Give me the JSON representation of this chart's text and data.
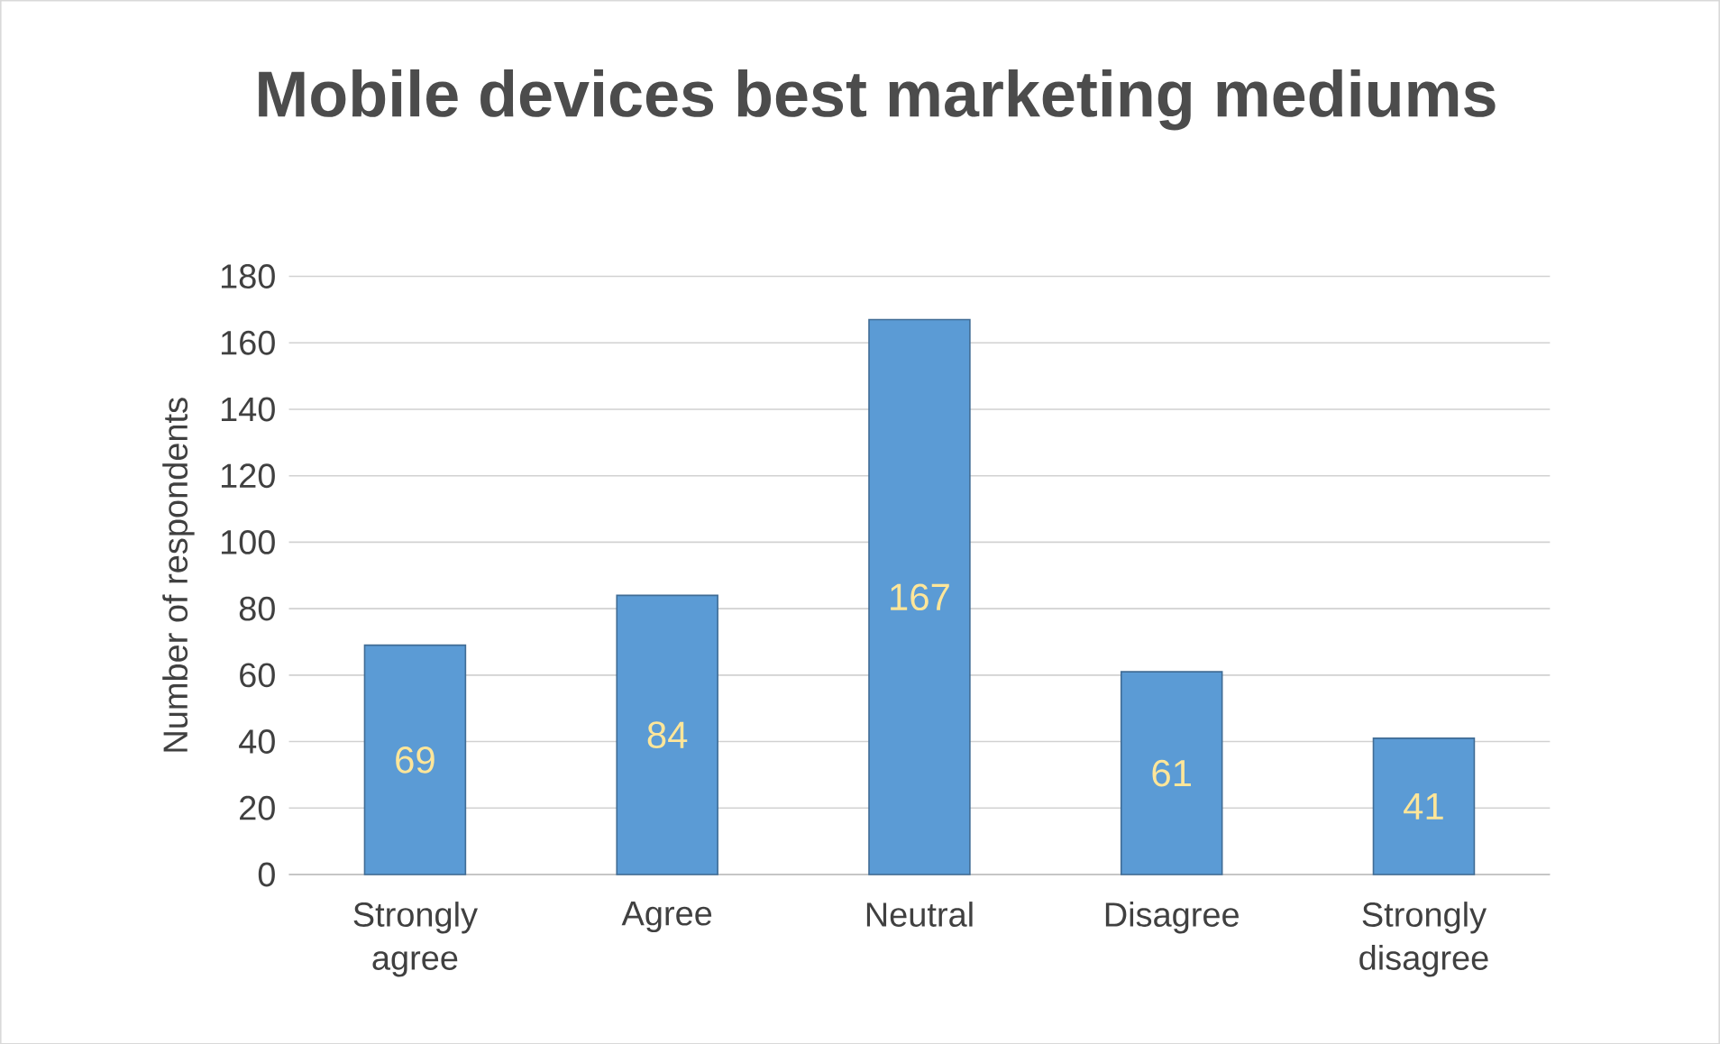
{
  "chart_data": {
    "type": "bar",
    "title": "Mobile devices best marketing mediums",
    "ylabel": "Number of respondents",
    "categories": [
      "Strongly agree",
      "Agree",
      "Neutral",
      "Disagree",
      "Strongly disagree"
    ],
    "values": [
      69,
      84,
      167,
      61,
      41
    ],
    "color": "#5b9bd5",
    "ylim": [
      0,
      180
    ],
    "yticks": [
      0,
      20,
      40,
      60,
      80,
      100,
      120,
      140,
      160,
      180
    ],
    "grid": "y",
    "data_labels": true
  }
}
